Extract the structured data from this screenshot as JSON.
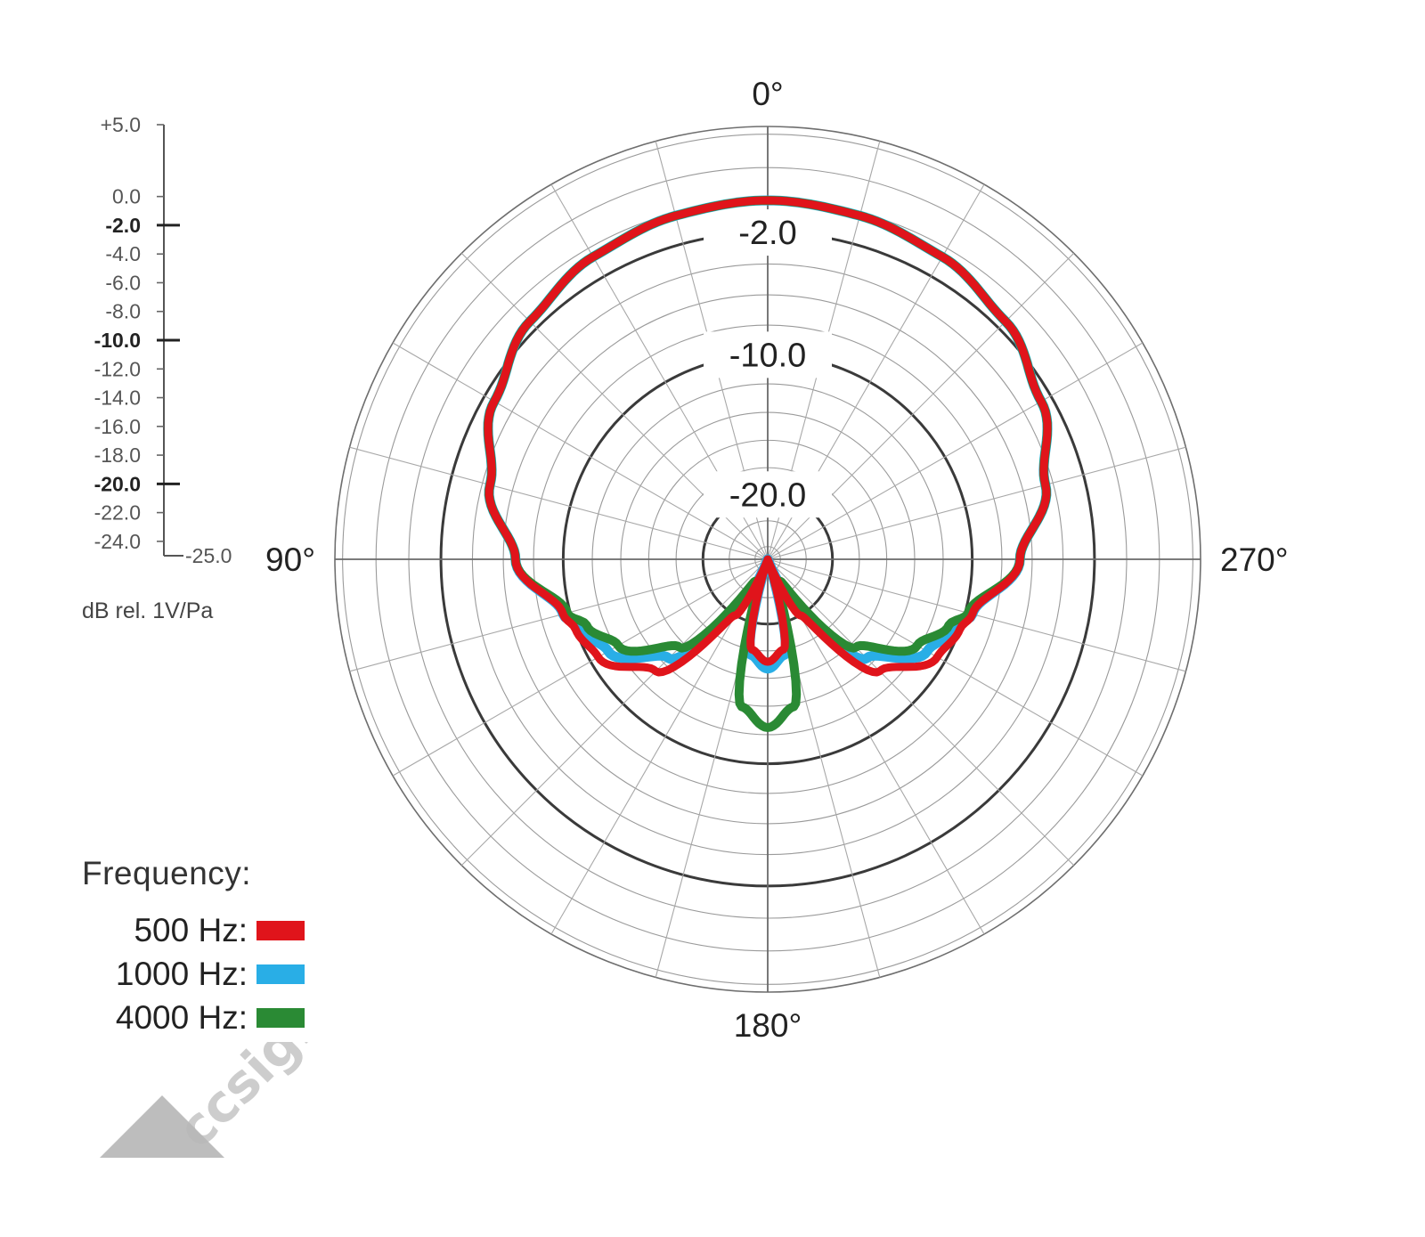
{
  "chart_data": {
    "type": "polar",
    "angle_labels": [
      {
        "angle": 0,
        "text": "0°"
      },
      {
        "angle": 90,
        "text": "90°"
      },
      {
        "angle": 180,
        "text": "180°"
      },
      {
        "angle": 270,
        "text": "270°"
      }
    ],
    "ring_labels": [
      {
        "db": -2.0,
        "text": "-2.0"
      },
      {
        "db": -10.0,
        "text": "-10.0"
      },
      {
        "db": -20.0,
        "text": "-20.0"
      }
    ],
    "radial_range_db": [
      -25.0,
      5.0
    ],
    "angle_grid_step_deg": 15,
    "scale": {
      "ticks": [
        {
          "value": 5.0,
          "text": "+5.0",
          "major": false
        },
        {
          "value": 0.0,
          "text": "0.0",
          "major": false
        },
        {
          "value": -2.0,
          "text": "-2.0",
          "major": true
        },
        {
          "value": -4.0,
          "text": "-4.0",
          "major": false
        },
        {
          "value": -6.0,
          "text": "-6.0",
          "major": false
        },
        {
          "value": -8.0,
          "text": "-8.0",
          "major": false
        },
        {
          "value": -10.0,
          "text": "-10.0",
          "major": true
        },
        {
          "value": -12.0,
          "text": "-12.0",
          "major": false
        },
        {
          "value": -14.0,
          "text": "-14.0",
          "major": false
        },
        {
          "value": -16.0,
          "text": "-16.0",
          "major": false
        },
        {
          "value": -18.0,
          "text": "-18.0",
          "major": false
        },
        {
          "value": -20.0,
          "text": "-20.0",
          "major": true
        },
        {
          "value": -22.0,
          "text": "-22.0",
          "major": false
        },
        {
          "value": -24.0,
          "text": "-24.0",
          "major": false
        }
      ],
      "bottom_label": "-25.0",
      "unit_label": "dB rel. 1V/Pa"
    },
    "legend": {
      "title": "Frequency:",
      "entries": [
        {
          "label": "500 Hz:",
          "color": "#e0141b"
        },
        {
          "label": "1000 Hz:",
          "color": "#29aee6"
        },
        {
          "label": "4000 Hz:",
          "color": "#2a8a34"
        }
      ]
    },
    "series": [
      {
        "name": "1000 Hz",
        "color": "#29aee6",
        "angles_deg": [
          0,
          15,
          30,
          45,
          60,
          75,
          90,
          105,
          110,
          120,
          135,
          150,
          160,
          170,
          180,
          190,
          200,
          210,
          225,
          240,
          250,
          255,
          270,
          285,
          300,
          315,
          330,
          345,
          360
        ],
        "values_db": [
          0.0,
          -0.2,
          -0.6,
          -1.4,
          -2.7,
          -4.5,
          -6.8,
          -9.5,
          -10.3,
          -11.4,
          -14.5,
          -21.0,
          -25.0,
          -17.6,
          -16.7,
          -17.6,
          -25.0,
          -21.0,
          -14.5,
          -11.4,
          -10.3,
          -9.5,
          -6.8,
          -4.5,
          -2.7,
          -1.4,
          -0.6,
          -0.2,
          0.0
        ]
      },
      {
        "name": "4000 Hz",
        "color": "#2a8a34",
        "angles_deg": [
          0,
          15,
          30,
          45,
          60,
          75,
          90,
          105,
          110,
          120,
          135,
          150,
          160,
          170,
          180,
          190,
          200,
          210,
          225,
          240,
          250,
          255,
          270,
          285,
          300,
          315,
          330,
          345,
          360
        ],
        "values_db": [
          0.0,
          -0.2,
          -0.6,
          -1.4,
          -2.7,
          -4.5,
          -6.8,
          -9.8,
          -10.8,
          -12.2,
          -15.6,
          -23.0,
          -22.5,
          -13.8,
          -12.5,
          -13.8,
          -22.5,
          -23.0,
          -15.6,
          -12.2,
          -10.8,
          -9.8,
          -6.8,
          -4.5,
          -2.7,
          -1.4,
          -0.6,
          -0.2,
          0.0
        ]
      },
      {
        "name": "500 Hz",
        "color": "#e0141b",
        "angles_deg": [
          0,
          15,
          30,
          45,
          60,
          75,
          90,
          105,
          110,
          120,
          135,
          150,
          160,
          170,
          180,
          190,
          200,
          210,
          225,
          240,
          250,
          255,
          270,
          285,
          300,
          315,
          330,
          345,
          360
        ],
        "values_db": [
          0.0,
          -0.2,
          -0.6,
          -1.4,
          -2.7,
          -4.5,
          -6.8,
          -9.5,
          -10.0,
          -10.6,
          -13.2,
          -20.0,
          -25.0,
          -18.0,
          -17.2,
          -18.0,
          -25.0,
          -20.0,
          -13.2,
          -10.6,
          -10.0,
          -9.5,
          -6.8,
          -4.5,
          -2.7,
          -1.4,
          -0.6,
          -0.2,
          0.0
        ]
      }
    ]
  },
  "watermark": "ccsightsound"
}
